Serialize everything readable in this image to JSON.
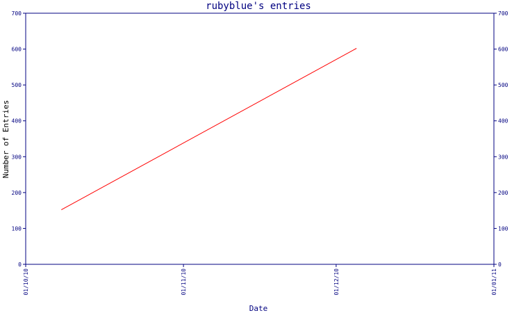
{
  "chart_data": {
    "type": "line",
    "title": "rubyblue's entries",
    "xlabel": "Date",
    "ylabel": "Number of Entries",
    "x_ticks": [
      "01/10/10",
      "01/11/10",
      "01/12/10",
      "01/01/11"
    ],
    "xlim": [
      "01/10/10",
      "01/01/11"
    ],
    "ylim": [
      0,
      700
    ],
    "y_ticks": [
      0,
      100,
      200,
      300,
      400,
      500,
      600,
      700
    ],
    "grid": false,
    "series": [
      {
        "color": "#ff0000",
        "x": [
          "2010-10-08",
          "2010-12-05"
        ],
        "y": [
          152,
          602
        ]
      }
    ]
  },
  "colors": {
    "axis": "#000080",
    "line": "#ff0000",
    "background": "#ffffff"
  }
}
